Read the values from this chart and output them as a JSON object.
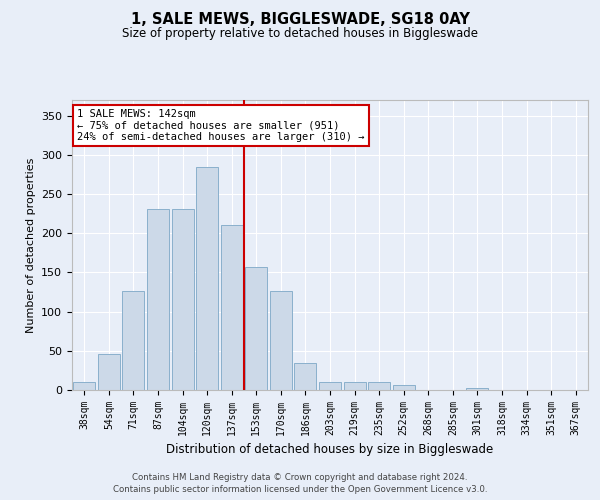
{
  "title": "1, SALE MEWS, BIGGLESWADE, SG18 0AY",
  "subtitle": "Size of property relative to detached houses in Biggleswade",
  "xlabel": "Distribution of detached houses by size in Biggleswade",
  "ylabel": "Number of detached properties",
  "bin_labels": [
    "38sqm",
    "54sqm",
    "71sqm",
    "87sqm",
    "104sqm",
    "120sqm",
    "137sqm",
    "153sqm",
    "170sqm",
    "186sqm",
    "203sqm",
    "219sqm",
    "235sqm",
    "252sqm",
    "268sqm",
    "285sqm",
    "301sqm",
    "318sqm",
    "334sqm",
    "351sqm",
    "367sqm"
  ],
  "bar_values": [
    10,
    46,
    126,
    231,
    231,
    284,
    210,
    157,
    126,
    35,
    10,
    10,
    10,
    7,
    0,
    0,
    2,
    0,
    0,
    0,
    0
  ],
  "bar_color": "#ccd9e8",
  "bar_edgecolor": "#8ab0cc",
  "vline_color": "#cc0000",
  "annotation_text": "1 SALE MEWS: 142sqm\n← 75% of detached houses are smaller (951)\n24% of semi-detached houses are larger (310) →",
  "annotation_box_facecolor": "#ffffff",
  "annotation_box_edgecolor": "#cc0000",
  "ylim": [
    0,
    370
  ],
  "yticks": [
    0,
    50,
    100,
    150,
    200,
    250,
    300,
    350
  ],
  "bg_color": "#e8eef8",
  "grid_color": "#ffffff",
  "footer_line1": "Contains HM Land Registry data © Crown copyright and database right 2024.",
  "footer_line2": "Contains public sector information licensed under the Open Government Licence v3.0."
}
